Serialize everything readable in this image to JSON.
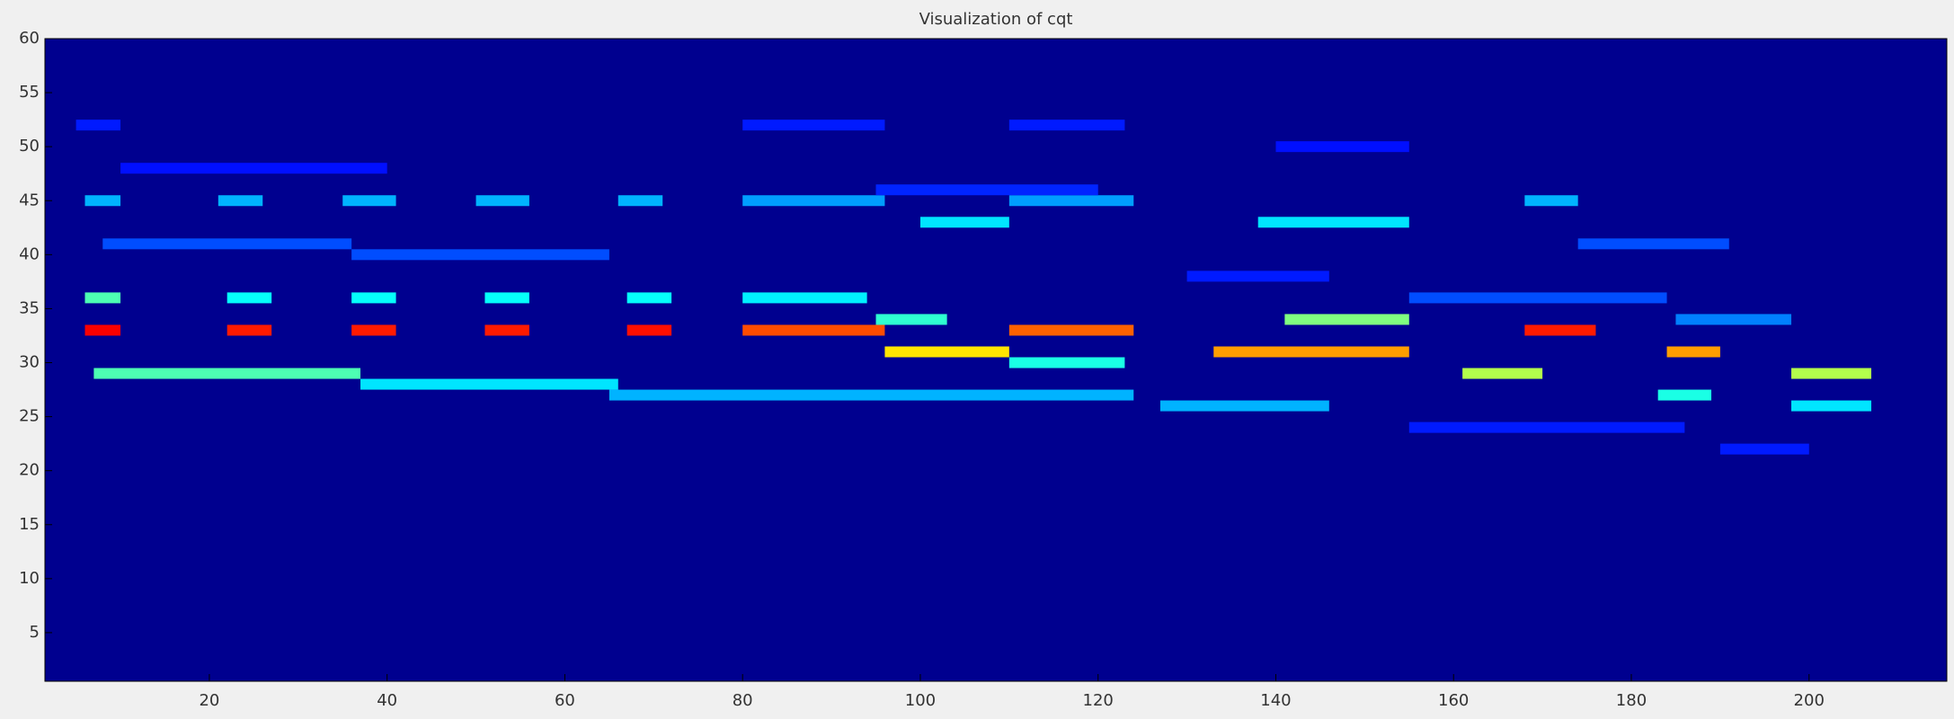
{
  "chart_data": {
    "type": "heatmap",
    "title": "Visualization of cqt",
    "xlim": [
      1.5,
      215.5
    ],
    "ylim": [
      0.5,
      60
    ],
    "xticks": [
      20,
      40,
      60,
      80,
      100,
      120,
      140,
      160,
      180,
      200
    ],
    "yticks": [
      5,
      10,
      15,
      20,
      25,
      30,
      35,
      40,
      45,
      50,
      55,
      60
    ],
    "colormap": "jet",
    "background": "#00008f",
    "cells": [
      {
        "x": [
          6,
          10
        ],
        "y": 33,
        "value": 0.88
      },
      {
        "x": [
          22,
          27
        ],
        "y": 33,
        "value": 0.85
      },
      {
        "x": [
          36,
          41
        ],
        "y": 33,
        "value": 0.85
      },
      {
        "x": [
          51,
          56
        ],
        "y": 33,
        "value": 0.85
      },
      {
        "x": [
          67,
          72
        ],
        "y": 33,
        "value": 0.86
      },
      {
        "x": [
          80,
          96
        ],
        "y": 33,
        "value": 0.8
      },
      {
        "x": [
          110,
          124
        ],
        "y": 33,
        "value": 0.78
      },
      {
        "x": [
          168,
          176
        ],
        "y": 33,
        "value": 0.85
      },
      {
        "x": [
          6,
          10
        ],
        "y": 36,
        "value": 0.45
      },
      {
        "x": [
          22,
          27
        ],
        "y": 36,
        "value": 0.38
      },
      {
        "x": [
          36,
          41
        ],
        "y": 36,
        "value": 0.38
      },
      {
        "x": [
          51,
          56
        ],
        "y": 36,
        "value": 0.38
      },
      {
        "x": [
          67,
          72
        ],
        "y": 36,
        "value": 0.38
      },
      {
        "x": [
          80,
          94
        ],
        "y": 36,
        "value": 0.36
      },
      {
        "x": [
          155,
          184
        ],
        "y": 36,
        "value": 0.2
      },
      {
        "x": [
          7,
          37
        ],
        "y": 29,
        "value": 0.45
      },
      {
        "x": [
          161,
          170
        ],
        "y": 29,
        "value": 0.55
      },
      {
        "x": [
          198,
          207
        ],
        "y": 29,
        "value": 0.55
      },
      {
        "x": [
          37,
          66
        ],
        "y": 28,
        "value": 0.35
      },
      {
        "x": [
          65,
          124
        ],
        "y": 27,
        "value": 0.3
      },
      {
        "x": [
          183,
          189
        ],
        "y": 27,
        "value": 0.4
      },
      {
        "x": [
          127,
          146
        ],
        "y": 26,
        "value": 0.3
      },
      {
        "x": [
          198,
          207
        ],
        "y": 26,
        "value": 0.35
      },
      {
        "x": [
          96,
          110
        ],
        "y": 31,
        "value": 0.65
      },
      {
        "x": [
          133,
          155
        ],
        "y": 31,
        "value": 0.72
      },
      {
        "x": [
          184,
          190
        ],
        "y": 31,
        "value": 0.72
      },
      {
        "x": [
          110,
          123
        ],
        "y": 30,
        "value": 0.4
      },
      {
        "x": [
          95,
          103
        ],
        "y": 34,
        "value": 0.42
      },
      {
        "x": [
          141,
          155
        ],
        "y": 34,
        "value": 0.5
      },
      {
        "x": [
          185,
          198
        ],
        "y": 34,
        "value": 0.25
      },
      {
        "x": [
          6,
          10
        ],
        "y": 45,
        "value": 0.3
      },
      {
        "x": [
          21,
          26
        ],
        "y": 45,
        "value": 0.3
      },
      {
        "x": [
          35,
          41
        ],
        "y": 45,
        "value": 0.3
      },
      {
        "x": [
          50,
          56
        ],
        "y": 45,
        "value": 0.3
      },
      {
        "x": [
          66,
          71
        ],
        "y": 45,
        "value": 0.3
      },
      {
        "x": [
          80,
          96
        ],
        "y": 45,
        "value": 0.28
      },
      {
        "x": [
          110,
          124
        ],
        "y": 45,
        "value": 0.28
      },
      {
        "x": [
          168,
          174
        ],
        "y": 45,
        "value": 0.3
      },
      {
        "x": [
          100,
          110
        ],
        "y": 43,
        "value": 0.35
      },
      {
        "x": [
          138,
          155
        ],
        "y": 43,
        "value": 0.35
      },
      {
        "x": [
          8,
          36
        ],
        "y": 41,
        "value": 0.2
      },
      {
        "x": [
          174,
          191
        ],
        "y": 41,
        "value": 0.2
      },
      {
        "x": [
          36,
          65
        ],
        "y": 40,
        "value": 0.2
      },
      {
        "x": [
          5,
          10
        ],
        "y": 52,
        "value": 0.15
      },
      {
        "x": [
          80,
          96
        ],
        "y": 52,
        "value": 0.15
      },
      {
        "x": [
          110,
          123
        ],
        "y": 52,
        "value": 0.15
      },
      {
        "x": [
          155,
          186
        ],
        "y": 24,
        "value": 0.15
      },
      {
        "x": [
          190,
          200
        ],
        "y": 22,
        "value": 0.15
      },
      {
        "x": [
          130,
          146
        ],
        "y": 38,
        "value": 0.15
      },
      {
        "x": [
          10,
          40
        ],
        "y": 48,
        "value": 0.14
      },
      {
        "x": [
          95,
          120
        ],
        "y": 46,
        "value": 0.16
      },
      {
        "x": [
          140,
          155
        ],
        "y": 50,
        "value": 0.14
      }
    ]
  }
}
